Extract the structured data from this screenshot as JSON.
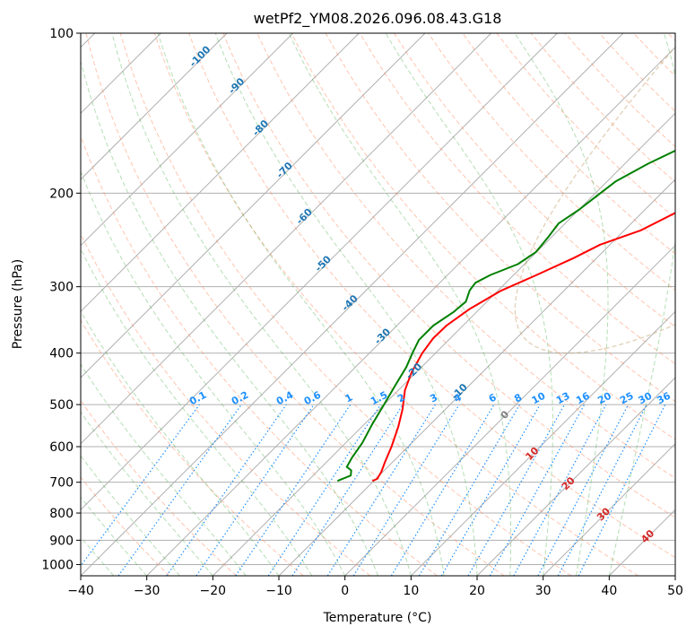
{
  "chart_data": {
    "type": "line",
    "title": "wetPf2_YM08.2026.096.08.43.G18",
    "xlabel": "Temperature (°C)",
    "ylabel": "Pressure (hPa)",
    "xlim": [
      -40,
      50
    ],
    "ylim": [
      1050,
      100
    ],
    "x_ticks": [
      -40,
      -30,
      -20,
      -10,
      0,
      10,
      20,
      30,
      40,
      50
    ],
    "x_tick_labels": [
      "−40",
      "−30",
      "−20",
      "−10",
      "0",
      "10",
      "20",
      "30",
      "40",
      "50"
    ],
    "y_ticks": [
      100,
      200,
      300,
      400,
      500,
      600,
      700,
      800,
      900,
      1000
    ],
    "y_tick_labels": [
      "100",
      "200",
      "300",
      "400",
      "500",
      "600",
      "700",
      "800",
      "900",
      "1000"
    ],
    "isotherm_labels": [
      "-100",
      "-90",
      "-80",
      "-70",
      "-60",
      "-50",
      "-40",
      "-30",
      "-20",
      "-10"
    ],
    "isotherm_label_values": [
      -100,
      -90,
      -80,
      -70,
      -60,
      -50,
      -40,
      -30,
      -20,
      -10
    ],
    "mixing_ratio_labels": [
      "0.1",
      "0.2",
      "0.4",
      "0.6",
      "1",
      "1.5",
      "2",
      "3",
      "4",
      "6",
      "8",
      "10",
      "13",
      "16",
      "20",
      "25",
      "30",
      "36"
    ],
    "mixing_ratio_values": [
      0.1,
      0.2,
      0.4,
      0.6,
      1,
      1.5,
      2,
      3,
      4,
      6,
      8,
      10,
      13,
      16,
      20,
      25,
      30,
      36
    ],
    "warm_isotherm_labels": [
      "0",
      "10",
      "20",
      "30",
      "40"
    ],
    "warm_isotherm_values": [
      0,
      10,
      20,
      30,
      40
    ],
    "series": [
      {
        "name": "Temperature",
        "color": "#ff0000",
        "points": [
          [
            -10.2,
            696
          ],
          [
            -9.8,
            690
          ],
          [
            -10.2,
            670
          ],
          [
            -11.2,
            640
          ],
          [
            -12.5,
            600
          ],
          [
            -14.5,
            550
          ],
          [
            -16.5,
            510
          ],
          [
            -19,
            470
          ],
          [
            -20.7,
            435
          ],
          [
            -22.0,
            400
          ],
          [
            -22.6,
            375
          ],
          [
            -22.5,
            355
          ],
          [
            -21.5,
            330
          ],
          [
            -19.5,
            305
          ],
          [
            -16.5,
            285
          ],
          [
            -13.5,
            265
          ],
          [
            -11.5,
            250
          ],
          [
            -7.5,
            235
          ],
          [
            -4.5,
            215
          ],
          [
            -1.5,
            200
          ],
          [
            1.5,
            188
          ],
          [
            3.0,
            177
          ],
          [
            4.5,
            168
          ],
          [
            7.5,
            158
          ],
          [
            11,
            149
          ],
          [
            15,
            138
          ],
          [
            19.5,
            126
          ],
          [
            23,
            116
          ],
          [
            26.5,
            109
          ],
          [
            32,
            100
          ]
        ]
      },
      {
        "name": "Dewpoint",
        "color": "#008000",
        "points": [
          [
            -15.5,
            696
          ],
          [
            -14.3,
            680
          ],
          [
            -15.0,
            665
          ],
          [
            -16.2,
            655
          ],
          [
            -16.8,
            630
          ],
          [
            -17.5,
            590
          ],
          [
            -18.8,
            545
          ],
          [
            -20.0,
            500
          ],
          [
            -21.2,
            460
          ],
          [
            -22.3,
            425
          ],
          [
            -23.5,
            400
          ],
          [
            -24.5,
            378
          ],
          [
            -24.5,
            355
          ],
          [
            -23.5,
            335
          ],
          [
            -23.2,
            320
          ],
          [
            -24.3,
            305
          ],
          [
            -24.6,
            295
          ],
          [
            -23.5,
            285
          ],
          [
            -21.0,
            272
          ],
          [
            -20.1,
            258
          ],
          [
            -20.5,
            242
          ],
          [
            -21.0,
            228
          ],
          [
            -20.0,
            215
          ],
          [
            -19.5,
            205
          ],
          [
            -18.7,
            190
          ],
          [
            -16.5,
            176
          ],
          [
            -14.0,
            165
          ],
          [
            -11.0,
            152
          ],
          [
            -9.5,
            145
          ],
          [
            -9.0,
            140
          ],
          [
            -7.5,
            131
          ],
          [
            -6.0,
            123
          ],
          [
            -3.5,
            115
          ],
          [
            -0.5,
            107
          ],
          [
            1.5,
            100
          ]
        ]
      }
    ],
    "grid": true
  }
}
